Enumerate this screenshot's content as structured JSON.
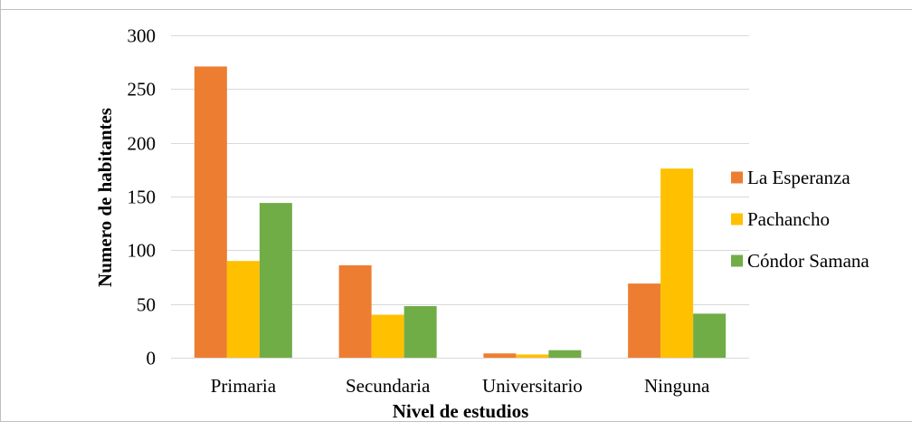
{
  "chart_data": {
    "type": "bar",
    "categories": [
      "Primaria",
      "Secundaria",
      "Universitario",
      "Ninguna"
    ],
    "series": [
      {
        "name": "La Esperanza",
        "color": "#ED7D31",
        "values": [
          271,
          86,
          4,
          69
        ]
      },
      {
        "name": "Pachancho",
        "color": "#FFC000",
        "values": [
          90,
          40,
          3,
          176
        ]
      },
      {
        "name": "Cóndor Samana",
        "color": "#70AD47",
        "values": [
          144,
          48,
          7,
          41
        ]
      }
    ],
    "title": "",
    "xlabel": "Nivel de estudios",
    "ylabel": "Numero de habitantes",
    "ylim": [
      0,
      300
    ],
    "yticks": [
      "0",
      "50",
      "100",
      "150",
      "200",
      "250",
      "300"
    ],
    "grid": true,
    "legend_position": "right"
  }
}
